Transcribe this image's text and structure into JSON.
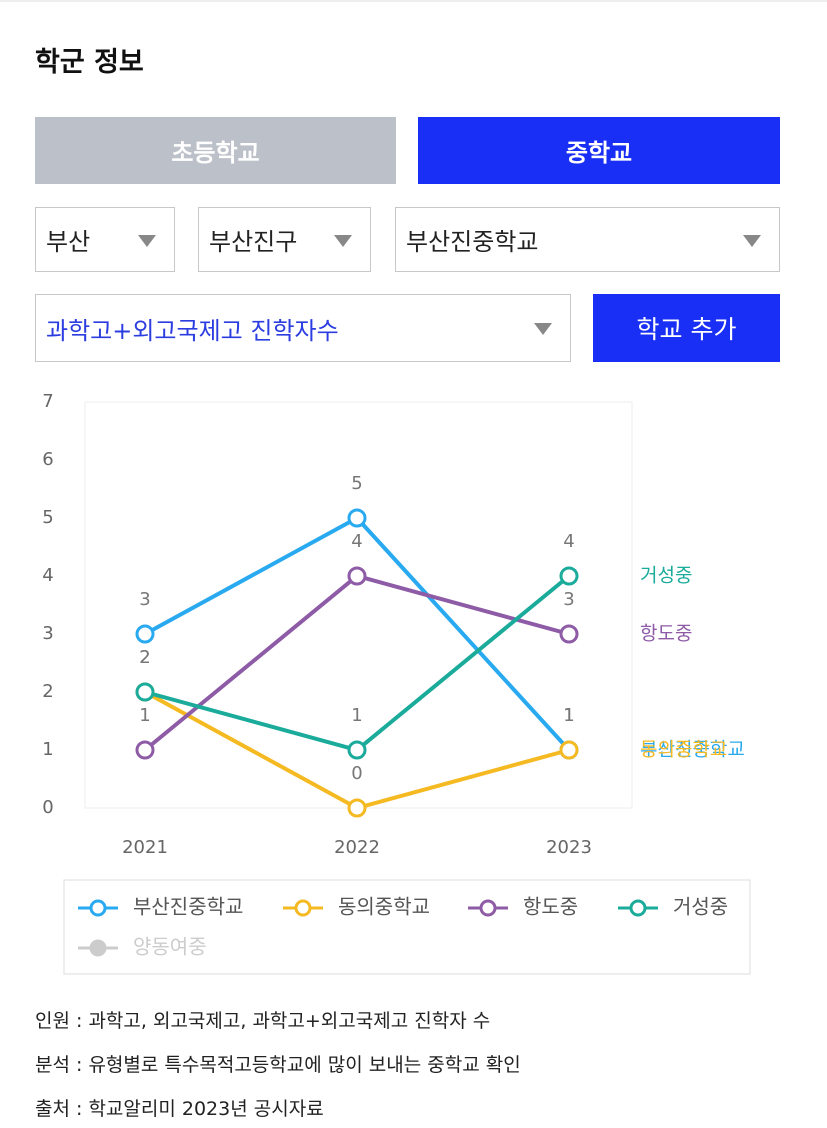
{
  "header": {
    "title": "학군 정보"
  },
  "tabs": [
    "초등학교",
    "중학교"
  ],
  "filters": {
    "region": "부산",
    "district": "부산진구",
    "school": "부산진중학교",
    "metric": "과학고+외고국제고 진학자수"
  },
  "button": "학교 추가",
  "chart_data": {
    "type": "line",
    "categories": [
      "2021",
      "2022",
      "2023"
    ],
    "ylim": [
      0,
      7
    ],
    "yticks": [
      0,
      1,
      2,
      3,
      4,
      5,
      6,
      7
    ],
    "series": [
      {
        "name": "부산진중학교",
        "color": "#29aaf0",
        "values": [
          3,
          5,
          1
        ]
      },
      {
        "name": "동의중학교",
        "color": "#f5b922",
        "values": [
          2,
          0,
          1
        ]
      },
      {
        "name": "항도중",
        "color": "#8e5ba6",
        "values": [
          1,
          4,
          3
        ]
      },
      {
        "name": "거성중",
        "color": "#1aab9b",
        "values": [
          2,
          1,
          4
        ]
      },
      {
        "name": "양동여중",
        "color": "#cccccc",
        "values": [
          null,
          null,
          null
        ],
        "visible": false
      }
    ]
  },
  "notes": [
    "인원 : 과학고, 외고국제고, 과학고+외고국제고 진학자 수",
    "분석 : 유형별로 특수목적고등학교에 많이 보내는 중학교 확인",
    "출처 : 학교알리미 2023년 공시자료"
  ]
}
